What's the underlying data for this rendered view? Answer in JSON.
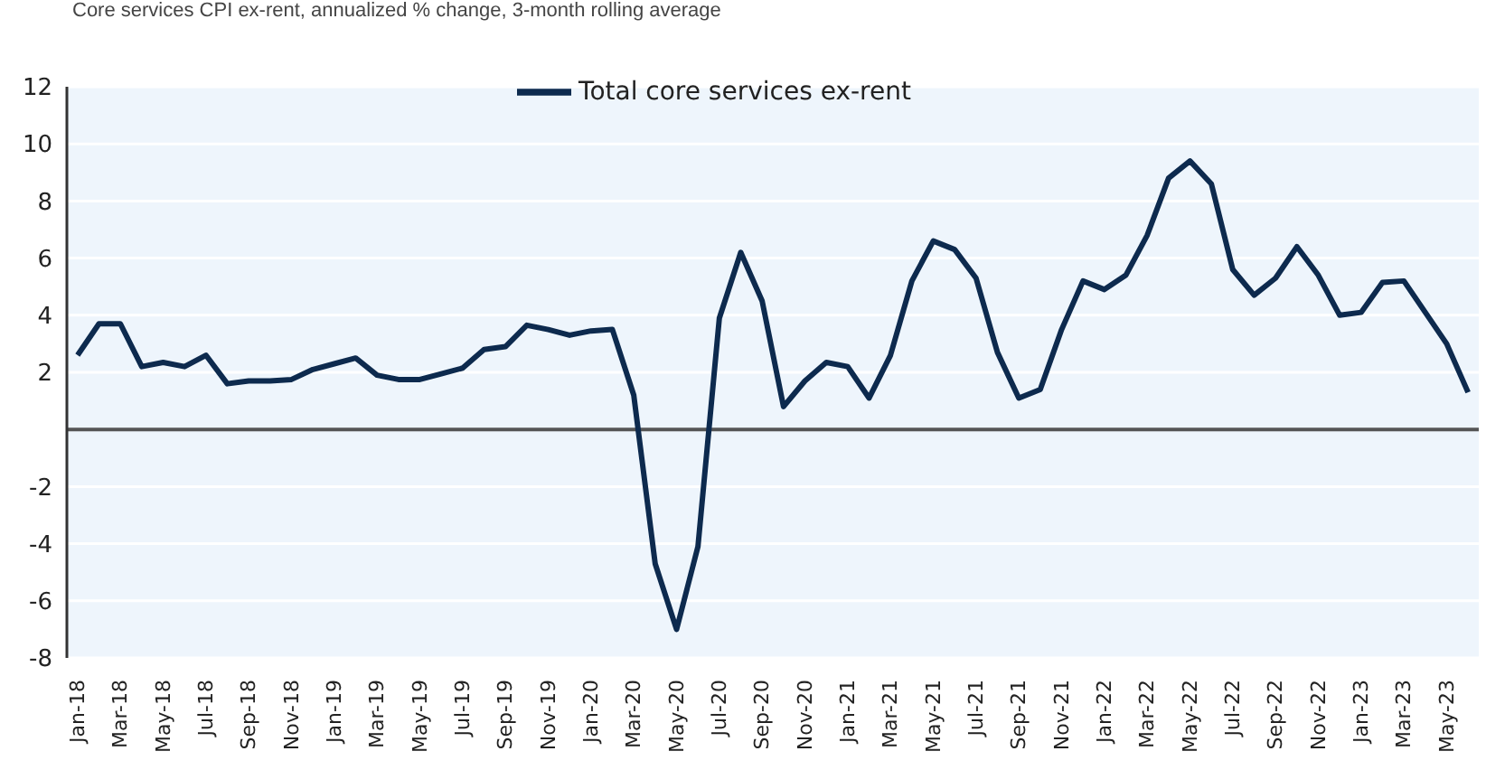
{
  "chart_data": {
    "type": "line",
    "title": "Core services CPI ex-rent, annualized % change, 3-month rolling average",
    "categories": [
      "Jan-18",
      null,
      "Mar-18",
      null,
      "May-18",
      null,
      "Jul-18",
      null,
      "Sep-18",
      null,
      "Nov-18",
      null,
      "Jan-19",
      null,
      "Mar-19",
      null,
      "May-19",
      null,
      "Jul-19",
      null,
      "Sep-19",
      null,
      "Nov-19",
      null,
      "Jan-20",
      null,
      "Mar-20",
      null,
      "May-20",
      null,
      "Jul-20",
      null,
      "Sep-20",
      null,
      "Nov-20",
      null,
      "Jan-21",
      null,
      "Mar-21",
      null,
      "May-21",
      null,
      "Jul-21",
      null,
      "Sep-21",
      null,
      "Nov-21",
      null,
      "Jan-22",
      null,
      "Mar-22",
      null,
      "May-22",
      null,
      "Jul-22",
      null,
      "Sep-22",
      null,
      "Nov-22",
      null,
      "Jan-23",
      null,
      "Mar-23",
      null,
      "May-23",
      null
    ],
    "series": [
      {
        "name": "Total core services ex-rent",
        "color": "#0d2a4e",
        "values": [
          2.6,
          3.7,
          3.7,
          2.2,
          2.35,
          2.2,
          2.6,
          1.6,
          1.7,
          1.7,
          1.75,
          2.1,
          2.3,
          2.5,
          1.9,
          1.75,
          1.75,
          1.95,
          2.15,
          2.8,
          2.9,
          3.65,
          3.5,
          3.3,
          3.45,
          3.5,
          1.2,
          -4.7,
          -7.0,
          -4.1,
          3.9,
          6.2,
          4.5,
          0.8,
          1.7,
          2.35,
          2.2,
          1.1,
          2.6,
          5.2,
          6.6,
          6.3,
          5.3,
          2.7,
          1.1,
          1.4,
          3.5,
          5.2,
          4.9,
          5.4,
          6.8,
          8.8,
          9.4,
          8.6,
          5.6,
          4.7,
          5.3,
          6.4,
          5.4,
          4.0,
          4.1,
          5.15,
          5.2,
          4.1,
          3.0,
          1.3
        ]
      }
    ],
    "ylim": [
      -8,
      12
    ],
    "yticks": [
      -8,
      -6,
      -4,
      -2,
      {
        "value": 0,
        "label": null
      },
      2,
      4,
      6,
      8,
      10,
      12
    ],
    "ref_lines": [
      {
        "axis": "y",
        "value": 0,
        "color": "#555555"
      }
    ],
    "grid": "y",
    "legend": "top",
    "marker": "none",
    "line_style": "solid"
  }
}
